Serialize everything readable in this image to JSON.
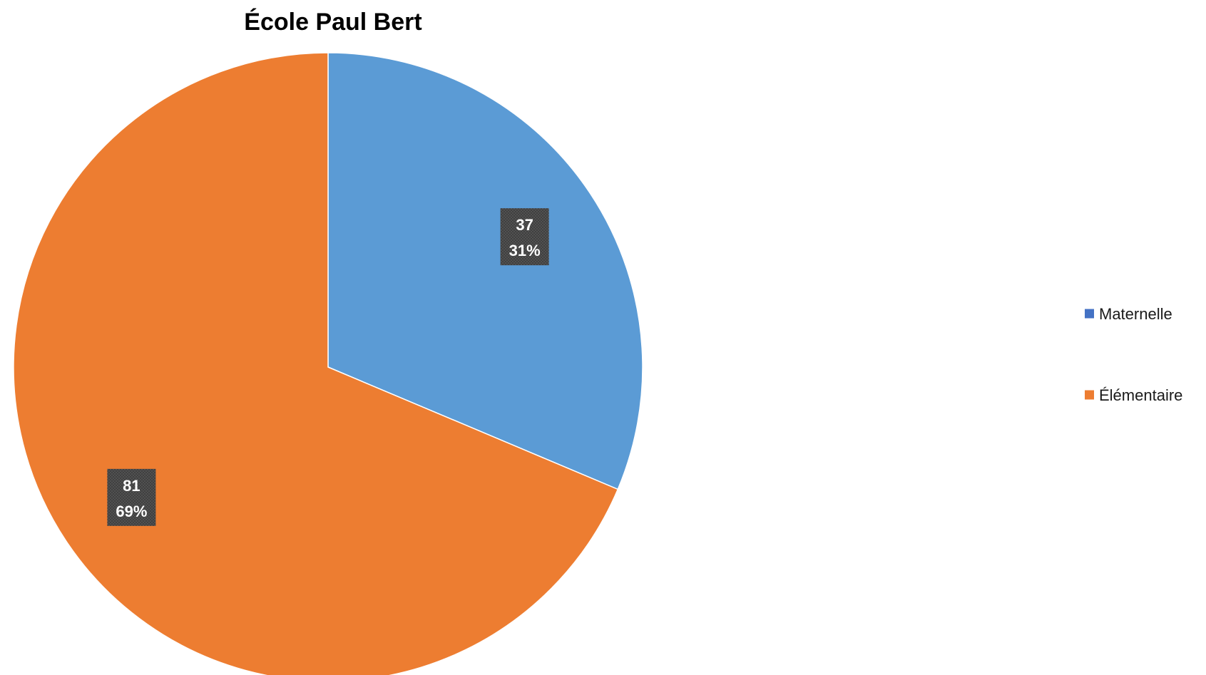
{
  "chart_data": {
    "type": "pie",
    "title": "École Paul Bert",
    "categories": [
      "Maternelle",
      "Élémentaire"
    ],
    "values": [
      37,
      81
    ],
    "percent_labels": [
      "31%",
      "69%"
    ],
    "colors": [
      "#5b9bd5",
      "#ed7d31"
    ],
    "legend_colors": [
      "#4472c4",
      "#ed7d31"
    ],
    "label_box_color": "#404040",
    "legend_position": "right",
    "start_angle": "12 o'clock",
    "direction": "clockwise"
  }
}
